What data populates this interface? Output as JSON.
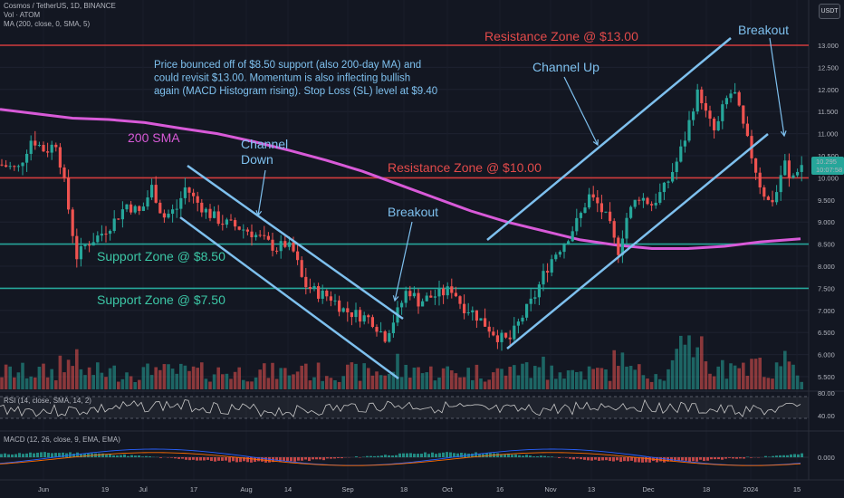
{
  "legend": {
    "symbol": "Cosmos / TetherUS, 1D, BINANCE",
    "volume": "Vol · ATOM",
    "ma": "MA (200, close, 0, SMA, 5)",
    "rsi": "RSI (14, close, SMA, 14, 2)",
    "macd": "MACD (12, 26, close, 9, EMA, EMA)"
  },
  "currency_badge": "USDT",
  "price_badge": {
    "price": "10.295",
    "countdown": "10:07:58"
  },
  "colors": {
    "background": "#131722",
    "up": "#26a69a",
    "down": "#ef5350",
    "resistance": "#d23c3c",
    "support": "#26a69a",
    "sma": "#d85ad8",
    "channel": "#7ec0ee"
  },
  "chart_data": {
    "type": "candlestick",
    "symbol": "Cosmos / TetherUS",
    "interval": "1D",
    "y_ticks": [
      "13.000",
      "12.500",
      "12.000",
      "11.500",
      "11.000",
      "10.500",
      "10.000",
      "9.500",
      "9.000",
      "8.500",
      "8.000",
      "7.500",
      "7.000",
      "6.500",
      "6.000",
      "5.500"
    ],
    "ylim": [
      5.3,
      13.4
    ],
    "x_ticks": [
      "Jun",
      "19",
      "Jul",
      "17",
      "Aug",
      "14",
      "Sep",
      "18",
      "Oct",
      "16",
      "Nov",
      "13",
      "Dec",
      "18",
      "2024",
      "15"
    ],
    "rsi_ticks": [
      "80.00",
      "40.00"
    ],
    "macd_ticks": [
      "0.000"
    ],
    "levels": [
      {
        "name": "Resistance Zone @ $13.00",
        "value": 13.0,
        "kind": "resistance"
      },
      {
        "name": "Resistance Zone @ $10.00",
        "value": 10.0,
        "kind": "resistance"
      },
      {
        "name": "Support Zone @ $8.50",
        "value": 8.5,
        "kind": "support"
      },
      {
        "name": "Support Zone @ $7.50",
        "value": 7.5,
        "kind": "support"
      }
    ],
    "annotations": {
      "description_lines": [
        "Price bounced off of $8.50 support (also 200-day MA) and",
        "could revisit $13.00. Momentum is also inflecting bullish",
        "again (MACD Histogram rising). Stop Loss (SL) level at $9.40"
      ],
      "sma_label": "200 SMA",
      "channel_down": [
        "Channel",
        "Down"
      ],
      "channel_up": "Channel Up",
      "breakout_1": "Breakout",
      "breakout_2": "Breakout",
      "res_13": "Resistance Zone @ $13.00",
      "res_10": "Resistance Zone @ $10.00",
      "sup_85": "Support Zone @ $8.50",
      "sup_75": "Support Zone @ $7.50"
    },
    "sma200": [
      [
        0,
        11.55
      ],
      [
        40,
        11.45
      ],
      [
        80,
        11.35
      ],
      [
        120,
        11.32
      ],
      [
        160,
        11.25
      ],
      [
        200,
        11.12
      ],
      [
        240,
        11.0
      ],
      [
        280,
        10.82
      ],
      [
        320,
        10.62
      ],
      [
        360,
        10.4
      ],
      [
        400,
        10.15
      ],
      [
        440,
        9.85
      ],
      [
        480,
        9.55
      ],
      [
        520,
        9.25
      ],
      [
        560,
        9.0
      ],
      [
        600,
        8.8
      ],
      [
        640,
        8.6
      ],
      [
        680,
        8.48
      ],
      [
        720,
        8.4
      ],
      [
        760,
        8.4
      ],
      [
        800,
        8.45
      ],
      [
        840,
        8.55
      ],
      [
        884,
        8.62
      ]
    ],
    "price_path": [
      [
        0,
        10.3
      ],
      [
        20,
        10.2
      ],
      [
        35,
        10.9
      ],
      [
        50,
        10.6
      ],
      [
        62,
        10.8
      ],
      [
        70,
        10.0
      ],
      [
        78,
        9.0
      ],
      [
        85,
        8.2
      ],
      [
        95,
        8.5
      ],
      [
        110,
        8.7
      ],
      [
        125,
        9.0
      ],
      [
        140,
        9.4
      ],
      [
        155,
        9.2
      ],
      [
        168,
        9.8
      ],
      [
        180,
        9.1
      ],
      [
        195,
        9.3
      ],
      [
        205,
        9.8
      ],
      [
        215,
        9.5
      ],
      [
        230,
        9.2
      ],
      [
        245,
        9.0
      ],
      [
        260,
        8.9
      ],
      [
        275,
        8.8
      ],
      [
        290,
        8.6
      ],
      [
        305,
        8.4
      ],
      [
        315,
        8.5
      ],
      [
        325,
        8.3
      ],
      [
        335,
        7.6
      ],
      [
        350,
        7.4
      ],
      [
        365,
        7.3
      ],
      [
        380,
        7.0
      ],
      [
        395,
        6.9
      ],
      [
        410,
        6.8
      ],
      [
        425,
        6.4
      ],
      [
        440,
        7.0
      ],
      [
        450,
        7.5
      ],
      [
        462,
        7.2
      ],
      [
        475,
        7.3
      ],
      [
        490,
        7.4
      ],
      [
        500,
        7.5
      ],
      [
        510,
        7.1
      ],
      [
        520,
        7.0
      ],
      [
        535,
        6.7
      ],
      [
        550,
        6.4
      ],
      [
        562,
        6.3
      ],
      [
        575,
        6.8
      ],
      [
        590,
        7.3
      ],
      [
        600,
        7.8
      ],
      [
        610,
        8.2
      ],
      [
        625,
        8.6
      ],
      [
        640,
        9.1
      ],
      [
        650,
        9.6
      ],
      [
        660,
        9.4
      ],
      [
        672,
        9.0
      ],
      [
        682,
        8.3
      ],
      [
        692,
        9.1
      ],
      [
        705,
        9.6
      ],
      [
        720,
        9.4
      ],
      [
        735,
        9.8
      ],
      [
        748,
        10.4
      ],
      [
        758,
        11.0
      ],
      [
        765,
        11.6
      ],
      [
        772,
        12.0
      ],
      [
        780,
        11.4
      ],
      [
        790,
        11.0
      ],
      [
        800,
        11.7
      ],
      [
        810,
        12.0
      ],
      [
        820,
        11.2
      ],
      [
        830,
        10.5
      ],
      [
        840,
        9.8
      ],
      [
        850,
        9.4
      ],
      [
        858,
        9.7
      ],
      [
        866,
        10.4
      ],
      [
        872,
        9.9
      ],
      [
        880,
        10.2
      ],
      [
        886,
        10.3
      ]
    ]
  }
}
